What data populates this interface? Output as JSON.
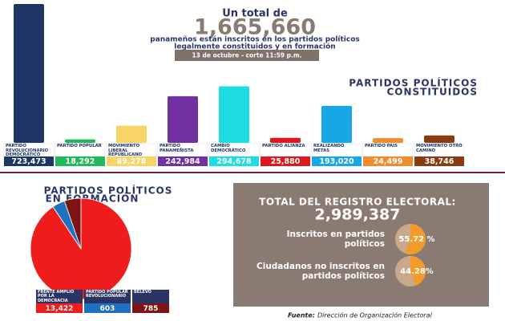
{
  "header": {
    "intro": "Un total de",
    "total": "1,665,660",
    "subtitle_lines": [
      "panameños están inscritos en los partidos políticos",
      "legalmente constituidos y en formación"
    ],
    "date": "13 de octubre - corte 11:59 p.m."
  },
  "chart_data": [
    {
      "type": "bar",
      "title_lines": [
        "PARTIDOS POLÍTICOS",
        "CONSTITUIDOS"
      ],
      "categories": [
        "PARTIDO REVOLUCIONARIO DEMOCRÁTICO",
        "PARTIDO POPULAR",
        "MOVIMIENTO LIBERAL REPUBLICANO NACIONALISTA",
        "PARTIDO PANAMEÑISTA",
        "CAMBIO DEMOCRÁTICO",
        "PARTIDO ALIANZA",
        "REALIZANDO METAS",
        "PARTIDO PAÍS",
        "MOVIMIENTO OTRO CAMINO"
      ],
      "values": [
        723473,
        18292,
        89278,
        242984,
        294678,
        25880,
        193020,
        24499,
        38746
      ],
      "value_labels": [
        "723,473",
        "18,292",
        "89,278",
        "242,984",
        "294,678",
        "25,880",
        "193,020",
        "24,499",
        "38,746"
      ],
      "colors": [
        "#1f3566",
        "#1fb85a",
        "#f8d466",
        "#7030a0",
        "#1ddde3",
        "#e2161d",
        "#17a6e6",
        "#f28b2e",
        "#8a3b12"
      ]
    },
    {
      "type": "pie",
      "title_lines": [
        "PARTIDOS POLÍTICOS",
        "EN FORMACIÓN"
      ],
      "categories": [
        "FRENTE AMPLIO POR LA DEMOCRACIA",
        "PARTIDO POPULAR REVOLUCIONARIO",
        "BELEVO"
      ],
      "values": [
        13422,
        603,
        785
      ],
      "value_labels": [
        "13,422",
        "603",
        "785"
      ],
      "colors": [
        "#ee1c1c",
        "#1e70c1",
        "#7d1313"
      ]
    }
  ],
  "summary": {
    "title": "TOTAL DEL REGISTRO ELECTORAL:",
    "total": "2,989,387",
    "items": [
      {
        "label": "Inscritos en partidos políticos",
        "value": 55.72,
        "value_label": "55.72 %"
      },
      {
        "label": "Ciudadanos no inscritos en partidos políticos",
        "value": 44.28,
        "value_label": "44.28%"
      }
    ],
    "colors": [
      "#f39a2b",
      "#c9a88c"
    ]
  },
  "footer": {
    "source_label": "Fuente:",
    "source": "Dirección de Organización Electoral"
  }
}
